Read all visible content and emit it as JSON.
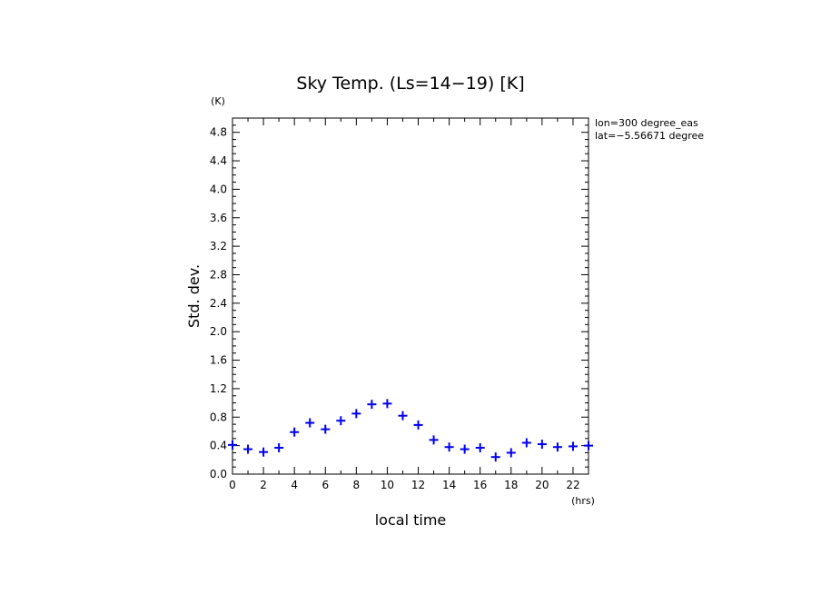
{
  "chart_data": {
    "type": "scatter",
    "title": "Sky Temp. (Ls=14−19) [K]",
    "xlabel": "local time",
    "ylabel": "Std. dev.",
    "x_unit": "(hrs)",
    "y_unit": "(K)",
    "xlim": [
      0,
      23
    ],
    "ylim": [
      0,
      5.0
    ],
    "x_ticks": [
      0,
      2,
      4,
      6,
      8,
      10,
      12,
      14,
      16,
      18,
      20,
      22
    ],
    "y_ticks": [
      0.0,
      0.4,
      0.8,
      1.2,
      1.6,
      2.0,
      2.4,
      2.8,
      3.2,
      3.6,
      4.0,
      4.4,
      4.8
    ],
    "y_tick_labels": [
      "0.0",
      "0.4",
      "0.8",
      "1.2",
      "1.6",
      "2.0",
      "2.4",
      "2.8",
      "3.2",
      "3.6",
      "4.0",
      "4.4",
      "4.8"
    ],
    "marker": "plus",
    "color": "#0000ee",
    "annotations": [
      "lon=300 degree_eas",
      "lat=−5.56671 degree"
    ],
    "series": [
      {
        "x": [
          0,
          1,
          2,
          3,
          4,
          5,
          6,
          7,
          8,
          9,
          10,
          11,
          12,
          13,
          14,
          15,
          16,
          17,
          18,
          19,
          20,
          21,
          22,
          23
        ],
        "values": [
          0.41,
          0.35,
          0.31,
          0.37,
          0.59,
          0.72,
          0.63,
          0.75,
          0.85,
          0.98,
          0.99,
          0.82,
          0.69,
          0.48,
          0.38,
          0.35,
          0.37,
          0.24,
          0.3,
          0.44,
          0.42,
          0.38,
          0.39,
          0.4
        ]
      }
    ]
  }
}
